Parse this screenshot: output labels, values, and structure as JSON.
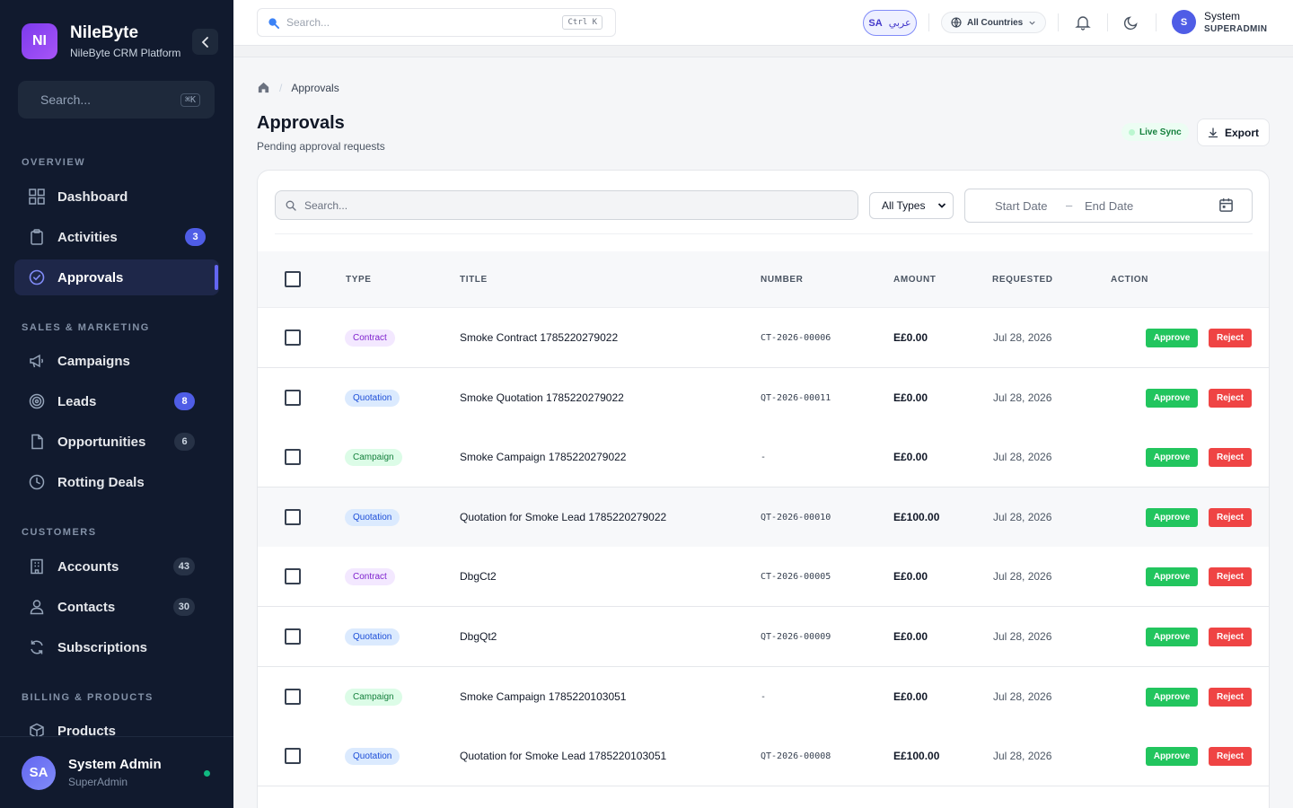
{
  "brand": {
    "logo": "NI",
    "name": "NileByte",
    "subtitle": "NileByte CRM Platform"
  },
  "sidebar": {
    "search_placeholder": "Search...",
    "search_kbd": "⌘K",
    "sections": {
      "overview": "OVERVIEW",
      "sales": "SALES & MARKETING",
      "customers": "CUSTOMERS",
      "billing": "BILLING & PRODUCTS"
    },
    "items": {
      "dashboard": {
        "label": "Dashboard",
        "icon": "grid-icon"
      },
      "activities": {
        "label": "Activities",
        "icon": "clipboard-icon",
        "badge": "3"
      },
      "approvals": {
        "label": "Approvals",
        "icon": "check-circle-icon"
      },
      "campaigns": {
        "label": "Campaigns",
        "icon": "megaphone-icon"
      },
      "leads": {
        "label": "Leads",
        "icon": "target-icon",
        "badge": "8"
      },
      "opportunities": {
        "label": "Opportunities",
        "icon": "file-icon",
        "badge": "6"
      },
      "rotting": {
        "label": "Rotting Deals",
        "icon": "clock-icon"
      },
      "accounts": {
        "label": "Accounts",
        "icon": "building-icon",
        "badge": "43"
      },
      "contacts": {
        "label": "Contacts",
        "icon": "user-icon",
        "badge": "30"
      },
      "subscriptions": {
        "label": "Subscriptions",
        "icon": "refresh-icon"
      },
      "products": {
        "label": "Products",
        "icon": "box-icon"
      }
    },
    "user": {
      "initials": "SA",
      "name": "System Admin",
      "role": "SuperAdmin"
    }
  },
  "topbar": {
    "search_placeholder": "Search...",
    "search_kbd": "Ctrl K",
    "lang_code": "SA",
    "lang_label": "عربي",
    "country": "All Countries",
    "user_initial": "S",
    "user_name": "System",
    "user_role": "SUPERADMIN"
  },
  "page": {
    "breadcrumb": "Approvals",
    "title": "Approvals",
    "subtitle": "Pending approval requests",
    "live_sync": "Live Sync",
    "export": "Export"
  },
  "filters": {
    "search_placeholder": "Search...",
    "type": "All Types",
    "start_date": "Start Date",
    "end_date": "End Date",
    "date_sep": "–"
  },
  "table": {
    "headers": {
      "type": "TYPE",
      "title": "TITLE",
      "number": "NUMBER",
      "amount": "AMOUNT",
      "requested": "REQUESTED",
      "action": "ACTION"
    },
    "approve_label": "Approve",
    "reject_label": "Reject",
    "rows": [
      {
        "type": "Contract",
        "title": "Smoke Contract 1785220279022",
        "number": "CT-2026-00006",
        "amount": "E£0.00",
        "requested": "Jul 28, 2026"
      },
      {
        "type": "Quotation",
        "title": "Smoke Quotation 1785220279022",
        "number": "QT-2026-00011",
        "amount": "E£0.00",
        "requested": "Jul 28, 2026"
      },
      {
        "type": "Campaign",
        "title": "Smoke Campaign 1785220279022",
        "number": "-",
        "amount": "E£0.00",
        "requested": "Jul 28, 2026"
      },
      {
        "type": "Quotation",
        "title": "Quotation for Smoke Lead 1785220279022",
        "number": "QT-2026-00010",
        "amount": "E£100.00",
        "requested": "Jul 28, 2026"
      },
      {
        "type": "Contract",
        "title": "DbgCt2",
        "number": "CT-2026-00005",
        "amount": "E£0.00",
        "requested": "Jul 28, 2026"
      },
      {
        "type": "Quotation",
        "title": "DbgQt2",
        "number": "QT-2026-00009",
        "amount": "E£0.00",
        "requested": "Jul 28, 2026"
      },
      {
        "type": "Campaign",
        "title": "Smoke Campaign 1785220103051",
        "number": "-",
        "amount": "E£0.00",
        "requested": "Jul 28, 2026"
      },
      {
        "type": "Quotation",
        "title": "Quotation for Smoke Lead 1785220103051",
        "number": "QT-2026-00008",
        "amount": "E£100.00",
        "requested": "Jul 28, 2026"
      }
    ]
  }
}
